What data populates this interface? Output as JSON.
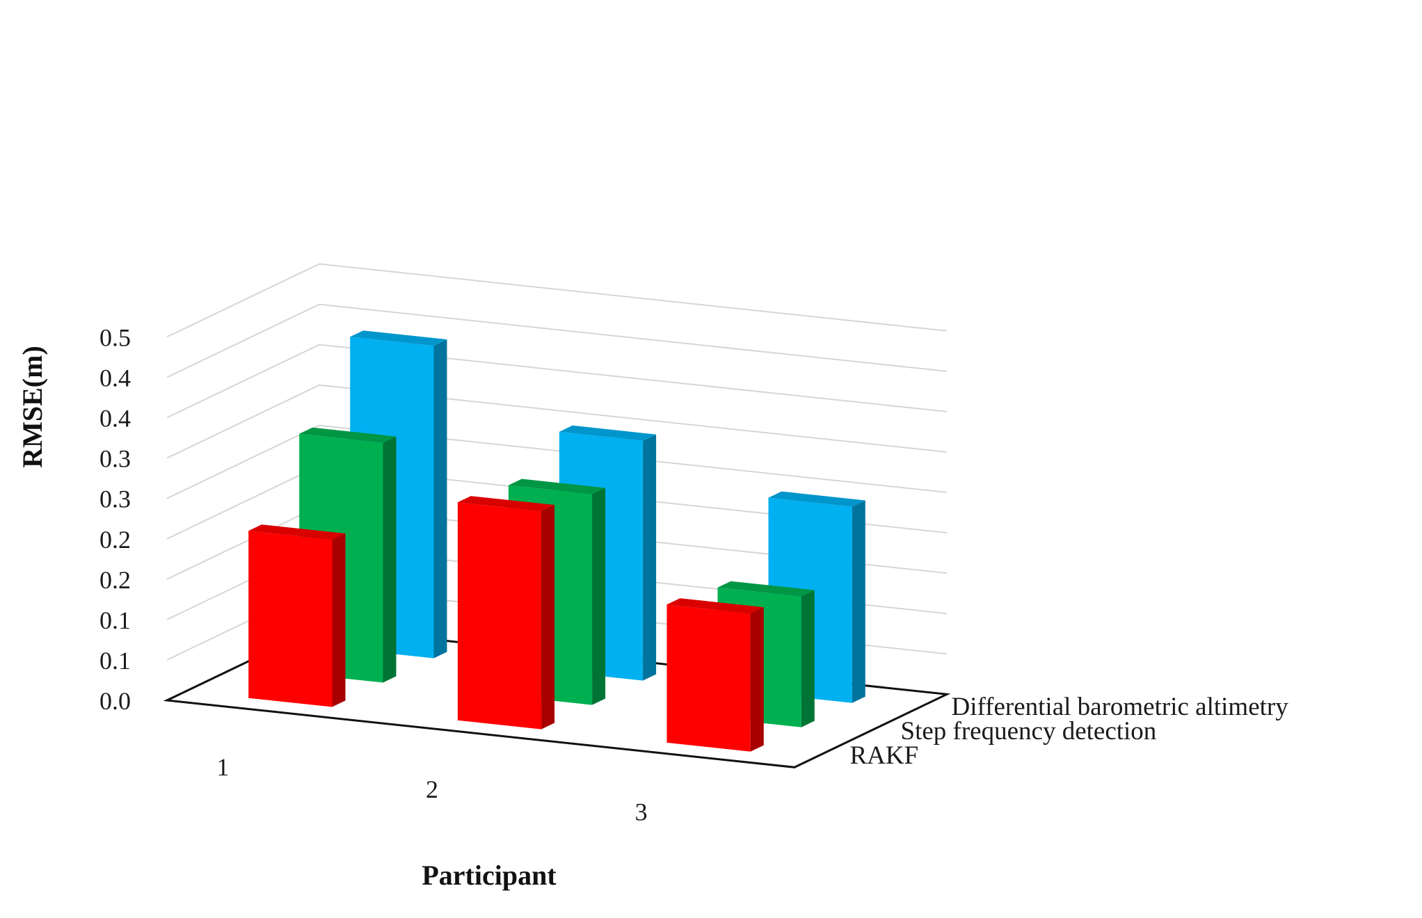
{
  "chart_data": {
    "type": "bar",
    "subtype": "3d-column",
    "title": "",
    "xlabel": "Participant",
    "ylabel": "RMSE(m)",
    "categories": [
      "1",
      "2",
      "3"
    ],
    "y_tick_labels": [
      "0.0",
      "0.1",
      "0.1",
      "0.2",
      "0.2",
      "0.3",
      "0.3",
      "0.4",
      "0.4",
      "0.5"
    ],
    "ylim": [
      0,
      0.5
    ],
    "grid": true,
    "series": [
      {
        "name": "RAKF",
        "values": [
          0.23,
          0.3,
          0.19
        ],
        "color": "#ff0000"
      },
      {
        "name": "Step frequency detection",
        "values": [
          0.33,
          0.29,
          0.18
        ],
        "color": "#00b050"
      },
      {
        "name": "Differential barometric  altimetry",
        "values": [
          0.43,
          0.33,
          0.27
        ],
        "color": "#00b0f0"
      }
    ]
  }
}
